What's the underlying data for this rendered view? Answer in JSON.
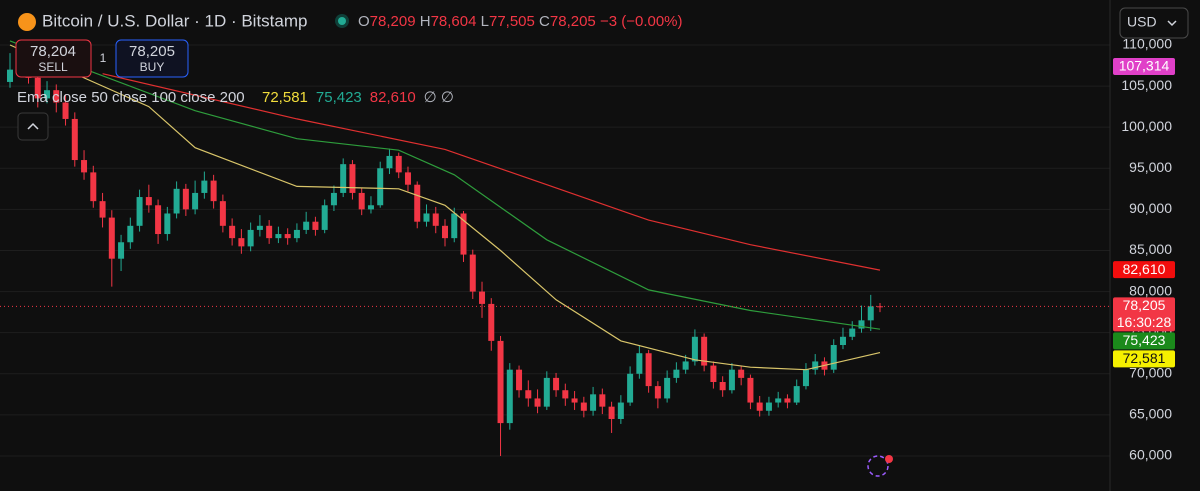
{
  "header": {
    "title": "Bitcoin / U.S. Dollar · 1D · Bitstamp",
    "ohlc": [
      {
        "key": "O",
        "value": "78,209"
      },
      {
        "key": "H",
        "value": "78,604"
      },
      {
        "key": "L",
        "value": "77,505"
      },
      {
        "key": "C",
        "value": "78,205"
      }
    ],
    "change": "−3 (−0.00%)",
    "currency": "USD"
  },
  "trade": {
    "sell_price": "78,204",
    "sell": "SELL",
    "buy_price": "78,205",
    "buy": "BUY",
    "quantity": "1"
  },
  "legend": {
    "label": "Ema close 50 close 100 close 200",
    "values": [
      {
        "text": "72,581",
        "color": "#f2dd3c"
      },
      {
        "text": "75,423",
        "color": "#22ab94"
      },
      {
        "text": "82,610",
        "color": "#f23645"
      }
    ],
    "extra": "∅ ∅"
  },
  "chart_data": {
    "type": "candlestick",
    "up_color": "#22ab94",
    "down_color": "#f23645",
    "grid": true,
    "ylim": [
      55740,
      115470
    ],
    "yticks": [
      {
        "value": 60000,
        "label": "60,000"
      },
      {
        "value": 65000,
        "label": "65,000"
      },
      {
        "value": 70000,
        "label": "70,000"
      },
      {
        "value": 75000,
        "label": "75,000"
      },
      {
        "value": 80000,
        "label": "80,000"
      },
      {
        "value": 85000,
        "label": "85,000"
      },
      {
        "value": 90000,
        "label": "90,000"
      },
      {
        "value": 95000,
        "label": "95,000"
      },
      {
        "value": 100000,
        "label": "100,000"
      },
      {
        "value": 105000,
        "label": "105,000"
      },
      {
        "value": 110000,
        "label": "110,000"
      }
    ],
    "open": [
      105500,
      107000,
      108500,
      106000,
      103500,
      104500,
      103000,
      101000,
      96000,
      94500,
      91000,
      89000,
      84000,
      86000,
      88000,
      91500,
      90500,
      87000,
      89500,
      92500,
      90000,
      92000,
      93500,
      91000,
      88000,
      86500,
      85500,
      87500,
      88000,
      86500,
      87000,
      86500,
      87500,
      88500,
      87500,
      90500,
      92000,
      95500,
      92000,
      90000,
      90500,
      95000,
      96500,
      94500,
      93000,
      88500,
      89500,
      88000,
      86500,
      89500,
      84500,
      80000,
      78500,
      74000,
      64000,
      70500,
      68000,
      67000,
      66000,
      69500,
      68000,
      67000,
      66500,
      65500,
      67500,
      66000,
      64500,
      66500,
      70000,
      72500,
      68500,
      67000,
      69500,
      70500,
      71500,
      74500,
      71000,
      69000,
      68000,
      70500,
      69500,
      66500,
      65500,
      66500,
      67000,
      66500,
      68500,
      70500,
      71500,
      70500,
      73500,
      74500,
      75500,
      76500,
      78209
    ],
    "high": [
      109000,
      110200,
      109200,
      106800,
      105600,
      105200,
      104000,
      101800,
      97200,
      95300,
      92000,
      89900,
      86900,
      89000,
      92400,
      93000,
      91200,
      90300,
      93400,
      93100,
      93500,
      94600,
      94200,
      91800,
      88900,
      87600,
      88400,
      89300,
      88700,
      87900,
      87700,
      88300,
      89700,
      89100,
      91200,
      92900,
      96200,
      96000,
      92600,
      91600,
      95800,
      97400,
      96900,
      95200,
      93400,
      90600,
      90300,
      88800,
      90200,
      89800,
      85100,
      81200,
      79200,
      74600,
      71300,
      71000,
      69200,
      68100,
      70300,
      70100,
      68800,
      67900,
      67200,
      68400,
      68200,
      66600,
      67400,
      70900,
      73400,
      72900,
      69100,
      70400,
      71400,
      72300,
      75400,
      74900,
      71500,
      69700,
      71300,
      71000,
      69900,
      67300,
      67200,
      67800,
      67500,
      69300,
      71300,
      72400,
      72000,
      74200,
      75600,
      76400,
      78300,
      79600,
      78604
    ],
    "low": [
      104800,
      106200,
      105300,
      102400,
      102900,
      101800,
      100200,
      95200,
      93600,
      90200,
      87800,
      80600,
      82500,
      85200,
      87300,
      89600,
      85800,
      86200,
      88900,
      89200,
      89400,
      91300,
      90100,
      87200,
      85600,
      84600,
      84900,
      86700,
      85800,
      85900,
      85700,
      86000,
      87000,
      86800,
      87100,
      89800,
      91500,
      91200,
      89300,
      89500,
      90200,
      94300,
      93800,
      92200,
      87700,
      87900,
      87100,
      85500,
      86000,
      83600,
      79100,
      76800,
      72800,
      60000,
      63200,
      67100,
      66000,
      65200,
      65600,
      67200,
      66100,
      65600,
      64700,
      64900,
      65100,
      62800,
      63900,
      66100,
      69400,
      67700,
      65800,
      66500,
      68900,
      70000,
      71000,
      70300,
      68200,
      67200,
      67600,
      68600,
      65700,
      64800,
      64900,
      65900,
      65800,
      66200,
      68100,
      69900,
      69800,
      70100,
      73000,
      74100,
      75000,
      75200,
      77505
    ],
    "close": [
      107000,
      108500,
      106000,
      103500,
      104500,
      103000,
      101000,
      96000,
      94500,
      91000,
      89000,
      84000,
      86000,
      88000,
      91500,
      90500,
      87000,
      89500,
      92500,
      90000,
      92000,
      93500,
      91000,
      88000,
      86500,
      85500,
      87500,
      88000,
      86500,
      87000,
      86500,
      87500,
      88500,
      87500,
      90500,
      92000,
      95500,
      92000,
      90000,
      90500,
      95000,
      96500,
      94500,
      93000,
      88500,
      89500,
      88000,
      86500,
      89500,
      84500,
      80000,
      78500,
      74000,
      64000,
      70500,
      68000,
      67000,
      66000,
      69500,
      68000,
      67000,
      66500,
      65500,
      67500,
      66000,
      64500,
      66500,
      70000,
      72500,
      68500,
      67000,
      69500,
      70500,
      71500,
      74500,
      71000,
      69000,
      68000,
      70500,
      69500,
      66500,
      65500,
      66500,
      67000,
      66500,
      68500,
      70500,
      71500,
      70500,
      73500,
      74500,
      75500,
      76500,
      78209,
      78205
    ],
    "lines": [
      {
        "color": "#d9c56a",
        "x": [
          0,
          15,
          20,
          31,
          42,
          47,
          53,
          59,
          66,
          74,
          80,
          86,
          94
        ],
        "values": [
          110000,
          102500,
          97500,
          92800,
          92500,
          90500,
          85000,
          79000,
          74000,
          71700,
          70800,
          70500,
          72581
        ]
      },
      {
        "color": "#2e9d3c",
        "x": [
          0,
          20,
          31,
          42,
          48,
          58,
          69,
          80,
          94
        ],
        "values": [
          110500,
          102000,
          98600,
          97200,
          94200,
          86300,
          80200,
          77700,
          75423
        ]
      },
      {
        "color": "#e03030",
        "x": [
          10,
          31,
          47,
          58,
          69,
          80,
          94
        ],
        "values": [
          106500,
          101000,
          97300,
          93000,
          88700,
          85700,
          82610
        ]
      }
    ],
    "price_labels": [
      {
        "value": 107314,
        "label": "107,314",
        "color": "#e040c8"
      },
      {
        "value": 82610,
        "label": "82,610",
        "color": "#f20d0d"
      },
      {
        "value": 78205,
        "label": "78,205",
        "sub": "16:30:28",
        "color": "#f23645"
      },
      {
        "value": 75423,
        "label": "75,423",
        "color": "#1b8a1b"
      },
      {
        "value": 72581,
        "label": "72,581",
        "color": "#f5f000"
      }
    ]
  }
}
